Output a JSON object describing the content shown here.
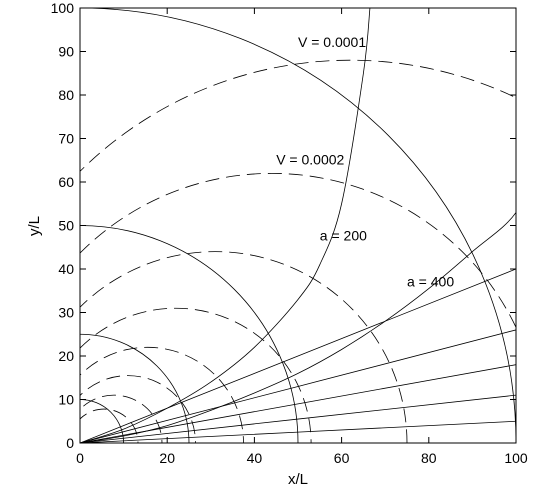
{
  "chart_data": {
    "type": "line",
    "xlabel": "x/L",
    "ylabel": "y/L",
    "xlim": [
      0,
      100
    ],
    "ylim": [
      0,
      100
    ],
    "xticks": [
      0,
      20,
      40,
      60,
      80,
      100
    ],
    "yticks": [
      0,
      10,
      20,
      30,
      40,
      50,
      60,
      70,
      80,
      90,
      100
    ],
    "grid": false,
    "solid_circles": [
      {
        "name": "circle-r100",
        "center": [
          0,
          0
        ],
        "radius": 100
      },
      {
        "name": "circle-r50",
        "center": [
          0,
          0
        ],
        "radius": 50
      },
      {
        "name": "circle-r25",
        "center": [
          0,
          0
        ],
        "radius": 25
      },
      {
        "name": "circle-r10",
        "center": [
          0,
          0
        ],
        "radius": 10
      }
    ],
    "solid_curves": [
      {
        "name": "a-200",
        "points": [
          [
            0,
            0
          ],
          [
            10,
            3.2
          ],
          [
            20,
            8
          ],
          [
            30,
            14
          ],
          [
            40,
            22
          ],
          [
            50,
            33
          ],
          [
            55,
            41
          ],
          [
            60,
            55
          ],
          [
            65,
            85
          ],
          [
            66.5,
            100
          ]
        ]
      },
      {
        "name": "a-400",
        "points": [
          [
            0,
            0
          ],
          [
            10,
            1.6
          ],
          [
            20,
            4
          ],
          [
            30,
            7.5
          ],
          [
            40,
            11.5
          ],
          [
            50,
            16
          ],
          [
            60,
            21.5
          ],
          [
            70,
            28
          ],
          [
            80,
            35.5
          ],
          [
            90,
            44
          ],
          [
            100,
            53
          ],
          [
            105,
            65.5
          ]
        ]
      },
      {
        "name": "ray-1",
        "points": [
          [
            0,
            0
          ],
          [
            100,
            40
          ]
        ]
      },
      {
        "name": "ray-2",
        "points": [
          [
            0,
            0
          ],
          [
            100,
            26
          ]
        ]
      },
      {
        "name": "ray-3",
        "points": [
          [
            0,
            0
          ],
          [
            100,
            18
          ]
        ]
      },
      {
        "name": "ray-4",
        "points": [
          [
            0,
            0
          ],
          [
            100,
            11
          ]
        ]
      },
      {
        "name": "ray-5",
        "points": [
          [
            0,
            0
          ],
          [
            100,
            5
          ]
        ]
      }
    ],
    "dashed_curves": [
      {
        "name": "V-0.0001",
        "center": [
          62,
          0
        ],
        "radius": 88
      },
      {
        "name": "V-0.0002",
        "center": [
          44,
          0
        ],
        "radius": 62
      },
      {
        "name": "V-3",
        "center": [
          31,
          0
        ],
        "radius": 44
      },
      {
        "name": "V-4",
        "center": [
          22,
          0
        ],
        "radius": 31
      },
      {
        "name": "V-5",
        "center": [
          15.5,
          0
        ],
        "radius": 22
      },
      {
        "name": "V-6",
        "center": [
          11,
          0
        ],
        "radius": 15.5
      },
      {
        "name": "V-7",
        "center": [
          7.8,
          0
        ],
        "radius": 11
      },
      {
        "name": "V-8",
        "center": [
          5.5,
          0
        ],
        "radius": 7.8
      }
    ],
    "annotations": [
      {
        "text": "V = 0.0001",
        "x": 50,
        "y": 91
      },
      {
        "text": "V = 0.0002",
        "x": 45,
        "y": 64
      },
      {
        "text": "a = 200",
        "x": 55,
        "y": 46.5
      },
      {
        "text": "a = 400",
        "x": 75,
        "y": 36
      }
    ]
  }
}
